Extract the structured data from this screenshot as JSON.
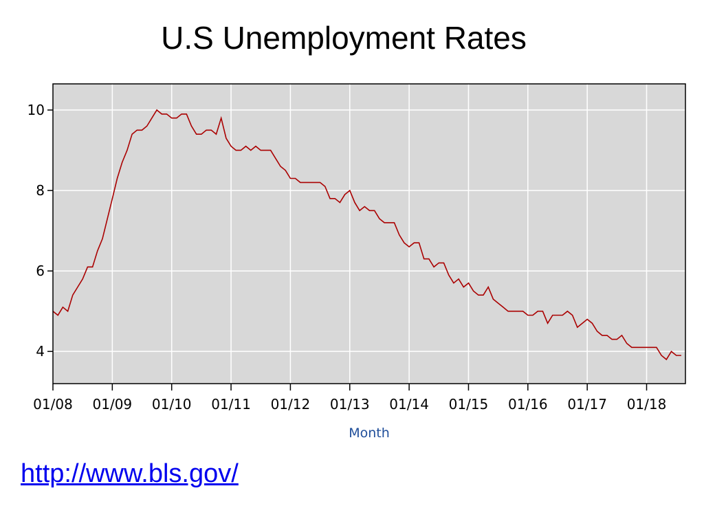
{
  "slide": {
    "title": "U.S Unemployment Rates",
    "link": "http://www.bls.gov/"
  },
  "chart_data": {
    "type": "line",
    "title": "",
    "xlabel": "Month",
    "ylabel": "",
    "x_tick_labels": [
      "01/08",
      "01/09",
      "01/10",
      "01/11",
      "01/12",
      "01/13",
      "01/14",
      "01/15",
      "01/16",
      "01/17",
      "01/18"
    ],
    "y_tick_labels": [
      "4",
      "6",
      "8",
      "10"
    ],
    "y_ticks": [
      4,
      6,
      8,
      10
    ],
    "ylim": [
      3.2,
      10.65
    ],
    "xlim": [
      "2008-01",
      "2018-08"
    ],
    "grid": true,
    "background_color": "#d8d8d8",
    "grid_color": "#ffffff",
    "line_color": "#aa0000",
    "series": [
      {
        "x": [
          "2008-01",
          "2008-02",
          "2008-03",
          "2008-04",
          "2008-05",
          "2008-06",
          "2008-07",
          "2008-08",
          "2008-09",
          "2008-10",
          "2008-11",
          "2008-12",
          "2009-01",
          "2009-02",
          "2009-03",
          "2009-04",
          "2009-05",
          "2009-06",
          "2009-07",
          "2009-08",
          "2009-09",
          "2009-10",
          "2009-11",
          "2009-12",
          "2010-01",
          "2010-02",
          "2010-03",
          "2010-04",
          "2010-05",
          "2010-06",
          "2010-07",
          "2010-08",
          "2010-09",
          "2010-10",
          "2010-11",
          "2010-12",
          "2011-01",
          "2011-02",
          "2011-03",
          "2011-04",
          "2011-05",
          "2011-06",
          "2011-07",
          "2011-08",
          "2011-09",
          "2011-10",
          "2011-11",
          "2011-12",
          "2012-01",
          "2012-02",
          "2012-03",
          "2012-04",
          "2012-05",
          "2012-06",
          "2012-07",
          "2012-08",
          "2012-09",
          "2012-10",
          "2012-11",
          "2012-12",
          "2013-01",
          "2013-02",
          "2013-03",
          "2013-04",
          "2013-05",
          "2013-06",
          "2013-07",
          "2013-08",
          "2013-09",
          "2013-10",
          "2013-11",
          "2013-12",
          "2014-01",
          "2014-02",
          "2014-03",
          "2014-04",
          "2014-05",
          "2014-06",
          "2014-07",
          "2014-08",
          "2014-09",
          "2014-10",
          "2014-11",
          "2014-12",
          "2015-01",
          "2015-02",
          "2015-03",
          "2015-04",
          "2015-05",
          "2015-06",
          "2015-07",
          "2015-08",
          "2015-09",
          "2015-10",
          "2015-11",
          "2015-12",
          "2016-01",
          "2016-02",
          "2016-03",
          "2016-04",
          "2016-05",
          "2016-06",
          "2016-07",
          "2016-08",
          "2016-09",
          "2016-10",
          "2016-11",
          "2016-12",
          "2017-01",
          "2017-02",
          "2017-03",
          "2017-04",
          "2017-05",
          "2017-06",
          "2017-07",
          "2017-08",
          "2017-09",
          "2017-10",
          "2017-11",
          "2017-12",
          "2018-01",
          "2018-02",
          "2018-03",
          "2018-04",
          "2018-05",
          "2018-06",
          "2018-07",
          "2018-08"
        ],
        "values": [
          5.0,
          4.9,
          5.1,
          5.0,
          5.4,
          5.6,
          5.8,
          6.1,
          6.1,
          6.5,
          6.8,
          7.3,
          7.8,
          8.3,
          8.7,
          9.0,
          9.4,
          9.5,
          9.5,
          9.6,
          9.8,
          10.0,
          9.9,
          9.9,
          9.8,
          9.8,
          9.9,
          9.9,
          9.6,
          9.4,
          9.4,
          9.5,
          9.5,
          9.4,
          9.8,
          9.3,
          9.1,
          9.0,
          9.0,
          9.1,
          9.0,
          9.1,
          9.0,
          9.0,
          9.0,
          8.8,
          8.6,
          8.5,
          8.3,
          8.3,
          8.2,
          8.2,
          8.2,
          8.2,
          8.2,
          8.1,
          7.8,
          7.8,
          7.7,
          7.9,
          8.0,
          7.7,
          7.5,
          7.6,
          7.5,
          7.5,
          7.3,
          7.2,
          7.2,
          7.2,
          6.9,
          6.7,
          6.6,
          6.7,
          6.7,
          6.3,
          6.3,
          6.1,
          6.2,
          6.2,
          5.9,
          5.7,
          5.8,
          5.6,
          5.7,
          5.5,
          5.4,
          5.4,
          5.6,
          5.3,
          5.2,
          5.1,
          5.0,
          5.0,
          5.0,
          5.0,
          4.9,
          4.9,
          5.0,
          5.0,
          4.7,
          4.9,
          4.9,
          4.9,
          5.0,
          4.9,
          4.6,
          4.7,
          4.8,
          4.7,
          4.5,
          4.4,
          4.4,
          4.3,
          4.3,
          4.4,
          4.2,
          4.1,
          4.1,
          4.1,
          4.1,
          4.1,
          4.1,
          3.9,
          3.8,
          4.0,
          3.9,
          3.9
        ]
      }
    ]
  }
}
